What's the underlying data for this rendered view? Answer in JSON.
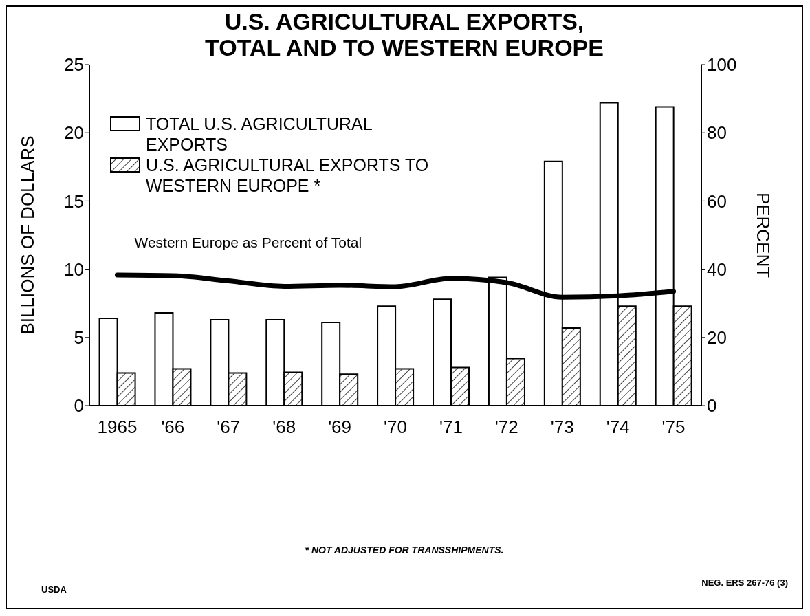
{
  "chart_data": {
    "type": "bar",
    "title": "U.S. AGRICULTURAL EXPORTS,\nTOTAL AND TO WESTERN EUROPE",
    "ylabel": "BILLIONS OF DOLLARS",
    "y2label": "PERCENT",
    "categories": [
      "1965",
      "'66",
      "'67",
      "'68",
      "'69",
      "'70",
      "'71",
      "'72",
      "'73",
      "'74",
      "'75"
    ],
    "series": [
      {
        "name": "TOTAL U.S. AGRICULTURAL EXPORTS",
        "color": "#ffffff",
        "values": [
          6.4,
          6.8,
          6.3,
          6.3,
          6.1,
          7.3,
          7.8,
          9.4,
          17.9,
          22.2,
          21.9
        ]
      },
      {
        "name": "U.S. AGRICULTURAL EXPORTS TO WESTERN EUROPE *",
        "color": "#000000",
        "values": [
          2.4,
          2.7,
          2.4,
          2.45,
          2.3,
          2.7,
          2.8,
          3.45,
          5.7,
          7.3,
          7.3
        ]
      },
      {
        "name": "Western Europe as Percent of Total",
        "type": "line",
        "axis": "y2",
        "color": "#000000",
        "values": [
          38.3,
          38.1,
          36.6,
          35.0,
          35.3,
          34.9,
          37.3,
          36.1,
          31.8,
          32.2,
          33.5
        ]
      }
    ],
    "ylim": [
      0,
      25
    ],
    "yticks": [
      0,
      5,
      10,
      15,
      20,
      25
    ],
    "y2lim": [
      0,
      100
    ],
    "y2ticks": [
      0,
      20,
      40,
      60,
      80,
      100
    ],
    "legend": "top left",
    "marker": "none",
    "line_style": "solid",
    "annotations": [
      "* NOT ADJUSTED FOR TRANSSHIPMENTS.",
      "USDA",
      "NEG. ERS 267-76 (3)"
    ]
  }
}
